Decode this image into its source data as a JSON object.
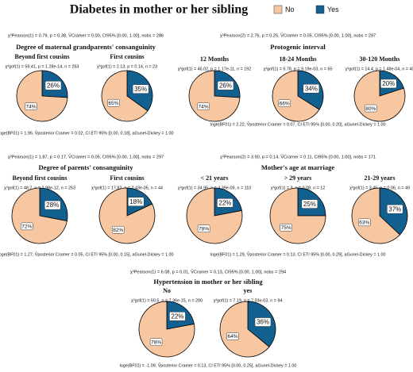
{
  "title": "Diabetes in mother or her sibling",
  "legend": {
    "names": [
      "No",
      "Yes"
    ],
    "colors": [
      "#F6C7A1",
      "#12608F"
    ]
  },
  "chart_data": [
    {
      "type": "pie",
      "title": "Degree of maternal grandparents' consanguinity",
      "stats": "χ²Pearson(1) = 0.79, p = 0.38, V̂Cramer = 0.00, CI95% [0.00, 1.00], nobs = 286",
      "bayes": "loge(BF01) = 1.96, V̂posterior Cramer = 0.02, CI ETI 95% [0.00, 0.18], aGunel-Dickey = 1.00",
      "panels": [
        {
          "title": "Beyond first cousins",
          "stats": "χ²gof(1) = 59.41, p = 1.28e-14, n = 263",
          "values": [
            74,
            26
          ],
          "value_labels": [
            "74%",
            "26%"
          ]
        },
        {
          "title": "First cousins",
          "stats": "χ²gof(1) = 2.13, p = 0.14, n = 23",
          "values": [
            65,
            35
          ],
          "value_labels": [
            "65%",
            "35%"
          ]
        }
      ]
    },
    {
      "type": "pie",
      "title": "Protogenic interval",
      "stats": "χ²Pearson(2) = 2.76, p = 0.25, V̂Cramer = 0.05, CI95% [0.00, 1.00], nobs = 297",
      "bayes": "loge(BF01) = 2.22, V̂posterior Cramer = 0.07, CI ETI 95% [0.00, 0.20], aGunel-Dickey = 1.00",
      "panels": [
        {
          "title": "12 Months",
          "stats": "χ²gof(1) = 46.02, p = 1.17e-11, n = 192",
          "values": [
            74,
            26
          ],
          "value_labels": [
            "74%",
            "26%"
          ]
        },
        {
          "title": "18-24 Months",
          "stats": "χ²gof(1) = 6.78, p = 9.19e-03, n = 65",
          "values": [
            66,
            34
          ],
          "value_labels": [
            "66%",
            "34%"
          ]
        },
        {
          "title": "30-120 Months",
          "stats": "χ²gof(1) = 14.4, p = 1.48e-04, n = 40",
          "values": [
            80,
            20
          ],
          "value_labels": [
            "80%",
            "20%"
          ]
        }
      ]
    },
    {
      "type": "pie",
      "title": "Degree of parents' consanguinity",
      "stats": "χ²Pearson(1) = 1.87, p = 0.17, V̂Cramer = 0.05, CI95% [0.00, 1.00], nobs = 297",
      "bayes": "loge(BF01) = 1.27, V̂posterior Cramer = 0.05, CI ETI 95% [0.00, 0.15], aGunel-Dickey = 1.00",
      "panels": [
        {
          "title": "Beyond first cousins",
          "stats": "χ²gof(1) = 48.7, p = 2.98e-12, n = 253",
          "values": [
            72,
            28
          ],
          "value_labels": [
            "72%",
            "28%"
          ]
        },
        {
          "title": "First cousins",
          "stats": "χ²gof(1) = 17.82, p = 2.43e-05, n = 44",
          "values": [
            82,
            18
          ],
          "value_labels": [
            "82%",
            "18%"
          ]
        }
      ]
    },
    {
      "type": "pie",
      "title": "Mother's age at marriage",
      "stats": "χ²Pearson(2) = 3.90, p = 0.14, V̂Cramer = 0.11, CI95% [0.00, 1.00], nobs = 171",
      "bayes": "loge(BF01) = 1.29, V̂posterior Cramer = 0.13, CI ETI 95% [0.00, 0.29], aGunel-Dickey = 1.00",
      "panels": [
        {
          "title": "< 21 years",
          "stats": "χ²gof(1) = 34.95, p = 3.39e-09, n = 110",
          "values": [
            78,
            22
          ],
          "value_labels": [
            "78%",
            "22%"
          ]
        },
        {
          "title": "> 29 years",
          "stats": "χ²gof(1) = 3, p = 0.08, n = 12",
          "values": [
            75,
            25
          ],
          "value_labels": [
            "75%",
            "25%"
          ]
        },
        {
          "title": "21-29 years",
          "stats": "χ²gof(1) = 3.45, p = 0.06, n = 49",
          "values": [
            63,
            37
          ],
          "value_labels": [
            "63%",
            "37%"
          ]
        }
      ]
    },
    {
      "type": "pie",
      "title": "Hypertension in mother or her sibling",
      "stats": "χ²Pearson(1) = 6.08, p = 0.01, V̂Cramer = 0.13, CI95% [0.00, 1.00], nobs = 294",
      "bayes": "loge(BF01) = -1.09, V̂posterior Cramer = 0.13, CI ETI 95% [0.00, 0.25], aGunel-Dickey = 1.00",
      "panels": [
        {
          "title": "No",
          "stats": "χ²gof(1) = 60.5, p = 7.36e-15, n = 200",
          "values": [
            78,
            22
          ],
          "value_labels": [
            "78%",
            "22%"
          ]
        },
        {
          "title": "yes",
          "stats": "χ²gof(1) = 7.19, p = 7.33e-03, n = 94",
          "values": [
            64,
            36
          ],
          "value_labels": [
            "64%",
            "36%"
          ]
        }
      ]
    }
  ]
}
